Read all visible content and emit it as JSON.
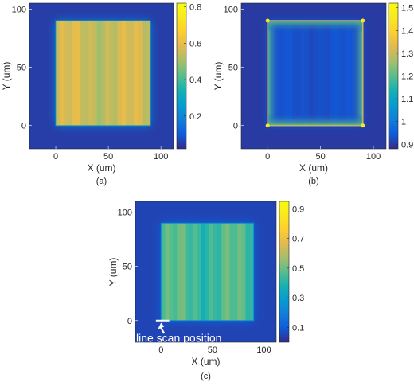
{
  "colors": {
    "background": "#2b2a8f",
    "scan_line": "#ffffff"
  },
  "chart_data": [
    {
      "type": "heatmap",
      "panel_label": "(a)",
      "xlabel": "X (um)",
      "ylabel": "Y (um)",
      "xlim": [
        -25,
        112
      ],
      "ylim": [
        -20,
        105
      ],
      "xticks": [
        0,
        50,
        100
      ],
      "yticks": [
        0,
        50,
        100
      ],
      "colorbar": {
        "range": [
          0.02,
          0.82
        ],
        "ticks": [
          0.2,
          0.4,
          0.6,
          0.8
        ]
      },
      "square": {
        "x": [
          0,
          90
        ],
        "y": [
          0,
          90
        ]
      },
      "background_value": 0.05,
      "square_value": 0.55,
      "edge_value": 0.3,
      "stripe_period_um": 4,
      "stripe_amplitude": 0.06,
      "colormap": "parula"
    },
    {
      "type": "heatmap",
      "panel_label": "(b)",
      "xlabel": "X (um)",
      "ylabel": "Y (um)",
      "xlim": [
        -25,
        112
      ],
      "ylim": [
        -20,
        105
      ],
      "xticks": [
        0,
        50,
        100
      ],
      "yticks": [
        0,
        50,
        100
      ],
      "colorbar": {
        "range": [
          0.88,
          1.52
        ],
        "ticks": [
          0.9,
          1,
          1.1,
          1.2,
          1.3,
          1.4,
          1.5
        ]
      },
      "square": {
        "x": [
          0,
          90
        ],
        "y": [
          0,
          90
        ]
      },
      "background_value": 0.9,
      "square_value": 0.93,
      "edge_value": 1.12,
      "stripe_period_um": 4,
      "stripe_amplitude": 0.01,
      "colormap": "parula"
    },
    {
      "type": "heatmap",
      "panel_label": "(c)",
      "xlabel": "X (um)",
      "ylabel": "Y (um)",
      "xlim": [
        -25,
        112
      ],
      "ylim": [
        -20,
        110
      ],
      "xticks": [
        0,
        50,
        100
      ],
      "yticks": [
        0,
        50,
        100
      ],
      "colorbar": {
        "range": [
          0.0,
          0.95
        ],
        "ticks": [
          0.1,
          0.3,
          0.5,
          0.7,
          0.9
        ]
      },
      "square": {
        "x": [
          0,
          90
        ],
        "y": [
          0,
          90
        ]
      },
      "background_value": 0.05,
      "square_value": 0.45,
      "edge_value": 0.2,
      "stripe_period_um": 4,
      "stripe_amplitude": 0.08,
      "colormap": "parula",
      "annotation": {
        "text": "line scan position",
        "scan_line_x": [
          -5,
          8
        ],
        "scan_line_y": 0,
        "arrow_tip": [
          0,
          -2
        ]
      }
    }
  ]
}
